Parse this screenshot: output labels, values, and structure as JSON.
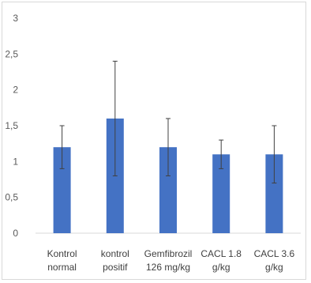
{
  "chart_data": {
    "type": "bar",
    "title": "",
    "xlabel": "",
    "ylabel": "",
    "categories": [
      [
        "Kontrol",
        "normal"
      ],
      [
        "kontrol",
        "positif"
      ],
      [
        "Gemfibrozil",
        "126 mg/kg"
      ],
      [
        "CACL 1.8",
        "g/kg"
      ],
      [
        "CACL 3.6",
        "g/kg"
      ]
    ],
    "values": [
      1.2,
      1.6,
      1.2,
      1.1,
      1.1
    ],
    "error": [
      0.3,
      0.8,
      0.4,
      0.2,
      0.4
    ],
    "ylim": [
      0,
      3
    ],
    "yticks": [
      "0",
      "0,5",
      "1",
      "1,5",
      "2",
      "2,5",
      "3"
    ],
    "ytick_values": [
      0,
      0.5,
      1,
      1.5,
      2,
      2.5,
      3
    ],
    "grid": false,
    "legend": "none",
    "bar_color": "#4472c4",
    "axis_color": "#d9d9d9",
    "error_color": "#404040"
  }
}
